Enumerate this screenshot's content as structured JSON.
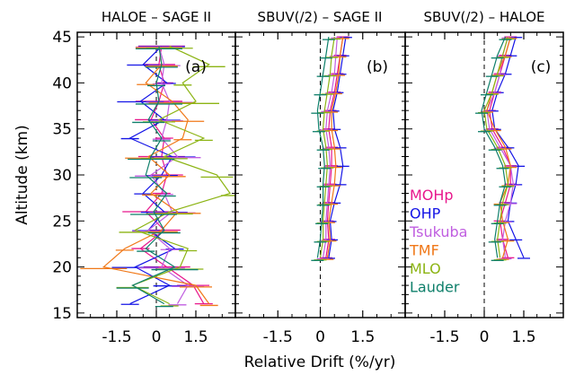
{
  "colors": {
    "MOHp": "#e8178c",
    "OHP": "#1414e6",
    "Tsukuba": "#c05ee0",
    "TMF": "#f07818",
    "MLO": "#8cb414",
    "Lauder": "#0e7f6a",
    "frame": "#000000"
  },
  "chart_data": {
    "type": "line",
    "xlabel": "Relative Drift (%/yr)",
    "ylabel": "Altitude (km)",
    "xlim": [
      -3.0,
      3.0
    ],
    "ylim": [
      14.5,
      45.5
    ],
    "xticks": [
      "-1.5",
      "0",
      "1.5"
    ],
    "yticks": [
      "15",
      "20",
      "25",
      "30",
      "35",
      "40",
      "45"
    ],
    "legend": [
      "MOHp",
      "OHP",
      "Tsukuba",
      "TMF",
      "MLO",
      "Lauder"
    ],
    "panels": [
      {
        "title": "HALOE – SAGE II",
        "letter": "(a)",
        "altitudes": [
          16,
          18,
          20,
          22,
          24,
          26,
          28,
          30,
          32,
          34,
          36,
          38,
          40,
          42,
          44
        ],
        "series": [
          {
            "name": "MOHp",
            "values": [
              1.8,
              1.4,
              0.4,
              -0.6,
              0.3,
              -0.4,
              0.2,
              0.4,
              0.2,
              0.3,
              -0.2,
              0.1,
              0.3,
              0.1,
              0.2
            ]
          },
          {
            "name": "OHP",
            "values": [
              -1.0,
              0.5,
              -0.8,
              0.7,
              -0.3,
              0.3,
              -0.5,
              0.2,
              0.6,
              -1.0,
              0.3,
              -0.6,
              0.4,
              -0.5,
              0.2
            ]
          },
          {
            "name": "Tsukuba",
            "values": [
              0.8,
              1.2,
              0.2,
              0.5,
              -0.3,
              0.6,
              0.3,
              -0.2,
              0.8,
              0.2,
              0.4,
              0.5,
              0.2,
              0.3,
              0.1
            ]
          },
          {
            "name": "TMF",
            "values": [
              2.0,
              1.5,
              -2.0,
              -1.2,
              0.2,
              0.8,
              -0.2,
              0.5,
              -0.3,
              1.0,
              1.2,
              0.6,
              -0.4,
              0.2,
              0.1
            ]
          },
          {
            "name": "MLO",
            "values": [
              0.5,
              -0.9,
              0.9,
              1.2,
              -0.8,
              0.5,
              2.8,
              2.3,
              0.3,
              1.8,
              0.1,
              1.5,
              1.0,
              2.0,
              0.5
            ]
          },
          {
            "name": "Lauder",
            "values": [
              0.3,
              -0.9,
              0.7,
              -0.4,
              0.3,
              -0.1,
              0.4,
              -0.4,
              -0.2,
              0.2,
              -0.3,
              0.1,
              0.0,
              0.2,
              0.1
            ]
          }
        ]
      },
      {
        "title": "SBUV(/2) – SAGE II",
        "letter": "(b)",
        "altitudes": [
          21,
          23,
          25,
          27,
          29,
          31,
          33,
          35,
          37,
          39,
          41,
          43,
          45
        ],
        "series": [
          {
            "name": "MOHp",
            "values": [
              0.2,
              0.3,
              0.25,
              0.3,
              0.35,
              0.4,
              0.4,
              0.3,
              0.35,
              0.5,
              0.6,
              0.7,
              0.8
            ]
          },
          {
            "name": "OHP",
            "values": [
              0.3,
              0.4,
              0.35,
              0.5,
              0.7,
              0.8,
              0.7,
              0.5,
              0.45,
              0.6,
              0.7,
              0.8,
              0.9
            ]
          },
          {
            "name": "Tsukuba",
            "values": [
              0.1,
              0.2,
              0.2,
              0.25,
              0.3,
              0.35,
              0.3,
              0.2,
              0.25,
              0.4,
              0.5,
              0.55,
              0.6
            ]
          },
          {
            "name": "TMF",
            "values": [
              0.25,
              0.35,
              0.3,
              0.4,
              0.5,
              0.55,
              0.5,
              0.4,
              0.4,
              0.55,
              0.65,
              0.7,
              0.8
            ]
          },
          {
            "name": "MLO",
            "values": [
              0.0,
              0.1,
              0.1,
              0.15,
              0.2,
              0.25,
              0.2,
              0.1,
              0.15,
              0.25,
              0.35,
              0.4,
              0.5
            ]
          },
          {
            "name": "Lauder",
            "values": [
              -0.1,
              0.0,
              0.05,
              0.1,
              0.1,
              0.15,
              0.1,
              -0.05,
              -0.1,
              0.0,
              0.1,
              0.2,
              0.3
            ]
          }
        ]
      },
      {
        "title": "SBUV(/2) – HALOE",
        "letter": "(c)",
        "altitudes": [
          21,
          23,
          25,
          27,
          29,
          31,
          33,
          35,
          37,
          39,
          41,
          43,
          45
        ],
        "series": [
          {
            "name": "MOHp",
            "values": [
              0.9,
              0.7,
              0.6,
              0.8,
              1.0,
              1.0,
              0.7,
              0.3,
              0.2,
              0.4,
              0.6,
              0.8,
              1.0
            ]
          },
          {
            "name": "OHP",
            "values": [
              1.5,
              1.2,
              0.9,
              1.0,
              1.2,
              1.3,
              0.9,
              0.4,
              0.3,
              0.5,
              0.8,
              1.0,
              1.2
            ]
          },
          {
            "name": "Tsukuba",
            "values": [
              0.8,
              0.7,
              0.8,
              1.0,
              1.1,
              1.0,
              0.6,
              0.2,
              0.1,
              0.4,
              0.6,
              0.7,
              0.9
            ]
          },
          {
            "name": "TMF",
            "values": [
              0.7,
              0.9,
              0.7,
              0.6,
              0.9,
              1.0,
              0.8,
              0.4,
              0.1,
              0.3,
              0.5,
              0.8,
              1.0
            ]
          },
          {
            "name": "MLO",
            "values": [
              0.6,
              0.5,
              0.6,
              0.7,
              0.9,
              0.8,
              0.5,
              0.1,
              0.0,
              0.3,
              0.5,
              0.7,
              0.9
            ]
          },
          {
            "name": "Lauder",
            "values": [
              0.5,
              0.4,
              0.5,
              0.6,
              0.8,
              0.7,
              0.4,
              0.0,
              -0.1,
              0.1,
              0.3,
              0.5,
              0.8
            ]
          }
        ]
      }
    ]
  }
}
